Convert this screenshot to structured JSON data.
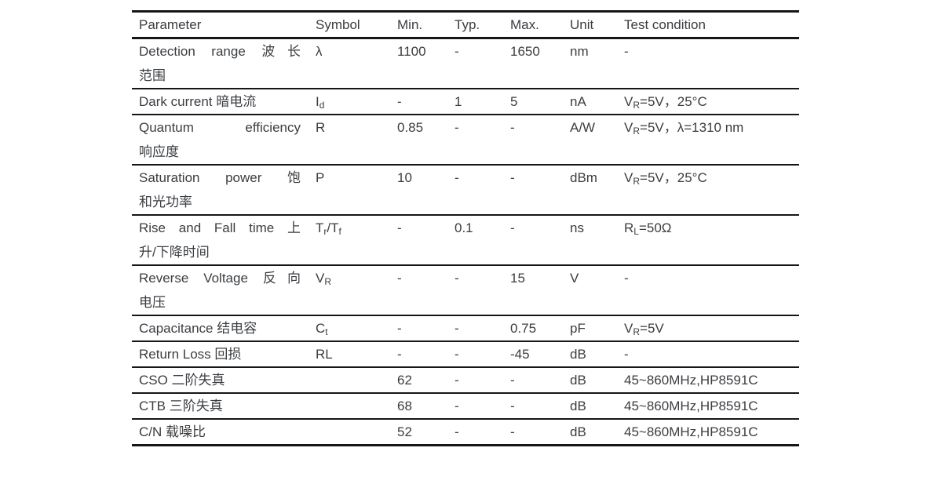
{
  "page": {
    "background": "#ffffff",
    "text_color": "#3a3d41",
    "border_color": "#161616"
  },
  "table": {
    "columns": [
      {
        "key": "parameter",
        "label": "Parameter"
      },
      {
        "key": "symbol",
        "label": "Symbol"
      },
      {
        "key": "min",
        "label": "Min."
      },
      {
        "key": "typ",
        "label": "Typ."
      },
      {
        "key": "max",
        "label": "Max."
      },
      {
        "key": "unit",
        "label": "Unit"
      },
      {
        "key": "test",
        "label": "Test condition"
      }
    ],
    "rows": [
      {
        "parameter": [
          "Detection range 波长",
          "范围"
        ],
        "symbol": "λ",
        "min": "1100",
        "typ": "-",
        "max": "1650",
        "unit": "nm",
        "test": "-"
      },
      {
        "parameter": [
          "Dark current 暗电流"
        ],
        "symbol": "I_{d}",
        "min": "-",
        "typ": "1",
        "max": "5",
        "unit": "nA",
        "test": "V_{R}=5V，25°C"
      },
      {
        "parameter": [
          "Quantum efficiency",
          "响应度"
        ],
        "symbol": "R",
        "min": "0.85",
        "typ": "-",
        "max": "-",
        "unit": "A/W",
        "test": "V_{R}=5V，λ=1310 nm"
      },
      {
        "parameter": [
          "Saturation power 饱",
          "和光功率"
        ],
        "symbol": "P",
        "min": "10",
        "typ": "-",
        "max": "-",
        "unit": "dBm",
        "test": "V_{R}=5V，25°C"
      },
      {
        "parameter": [
          "Rise and Fall time 上",
          "升/下降时间"
        ],
        "symbol": "T_{r}/T_{f}",
        "min": "-",
        "typ": "0.1",
        "max": "-",
        "unit": "ns",
        "test": "R_{L}=50Ω"
      },
      {
        "parameter": [
          "Reverse Voltage 反向",
          "电压"
        ],
        "symbol": "V_{R}",
        "min": "-",
        "typ": "-",
        "max": "15",
        "unit": "V",
        "test": "-"
      },
      {
        "parameter": [
          "Capacitance 结电容"
        ],
        "symbol": "C_{t}",
        "min": "-",
        "typ": "-",
        "max": "0.75",
        "unit": "pF",
        "test": "V_{R}=5V"
      },
      {
        "parameter": [
          "Return Loss 回损"
        ],
        "symbol": "RL",
        "min": "-",
        "typ": "-",
        "max": "-45",
        "unit": "dB",
        "test": "-"
      },
      {
        "parameter": [
          "CSO 二阶失真"
        ],
        "symbol": "",
        "min": "62",
        "typ": "-",
        "max": "-",
        "unit": "dB",
        "test": "45~860MHz,HP8591C"
      },
      {
        "parameter": [
          "CTB 三阶失真"
        ],
        "symbol": "",
        "min": "68",
        "typ": "-",
        "max": "-",
        "unit": "dB",
        "test": "45~860MHz,HP8591C"
      },
      {
        "parameter": [
          "C/N 载噪比"
        ],
        "symbol": "",
        "min": "52",
        "typ": "-",
        "max": "-",
        "unit": "dB",
        "test": "45~860MHz,HP8591C"
      }
    ]
  }
}
